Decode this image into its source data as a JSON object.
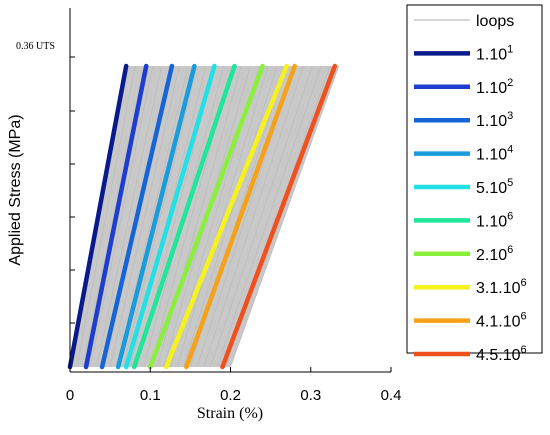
{
  "chart_data": {
    "type": "line",
    "xlabel": "Strain (%)",
    "ylabel": "Applied Stress (MPa)",
    "xlim": [
      0,
      0.4
    ],
    "x_ticks": [
      "0",
      "0.1",
      "0.2",
      "0.3",
      "0.4"
    ],
    "y_annotation": "0.36 UTS",
    "ylim": [
      0,
      0.36
    ],
    "legend_position": "right, outside plot",
    "grid": false,
    "loops_band": {
      "name": "loops",
      "color": "#c8c8c8",
      "x_min_bottom": 0.0,
      "x_max_bottom": 0.2,
      "x_min_top": 0.07,
      "x_max_top": 0.335
    },
    "series": [
      {
        "name_base": "1.10",
        "name_exp": "1",
        "color": "#0a1a8c",
        "x_bottom": 0.0,
        "x_top": 0.07
      },
      {
        "name_base": "1.10",
        "name_exp": "2",
        "color": "#1e3ccd",
        "x_bottom": 0.02,
        "x_top": 0.095
      },
      {
        "name_base": "1.10",
        "name_exp": "3",
        "color": "#1565d6",
        "x_bottom": 0.04,
        "x_top": 0.127
      },
      {
        "name_base": "1.10",
        "name_exp": "4",
        "color": "#1a9bdc",
        "x_bottom": 0.06,
        "x_top": 0.155
      },
      {
        "name_base": "5.10",
        "name_exp": "5",
        "color": "#21e0e6",
        "x_bottom": 0.07,
        "x_top": 0.18
      },
      {
        "name_base": "1.10",
        "name_exp": "6",
        "color": "#1ee69a",
        "x_bottom": 0.08,
        "x_top": 0.205
      },
      {
        "name_base": "2.10",
        "name_exp": "6",
        "color": "#8af03c",
        "x_bottom": 0.1,
        "x_top": 0.24
      },
      {
        "name_base": "3.1.10",
        "name_exp": "6",
        "color": "#f6f21a",
        "x_bottom": 0.12,
        "x_top": 0.27
      },
      {
        "name_base": "4.1.10",
        "name_exp": "6",
        "color": "#f5a21a",
        "x_bottom": 0.145,
        "x_top": 0.28
      },
      {
        "name_base": "4.5.10",
        "name_exp": "6",
        "color": "#f0501e",
        "x_bottom": 0.19,
        "x_top": 0.33
      }
    ]
  }
}
